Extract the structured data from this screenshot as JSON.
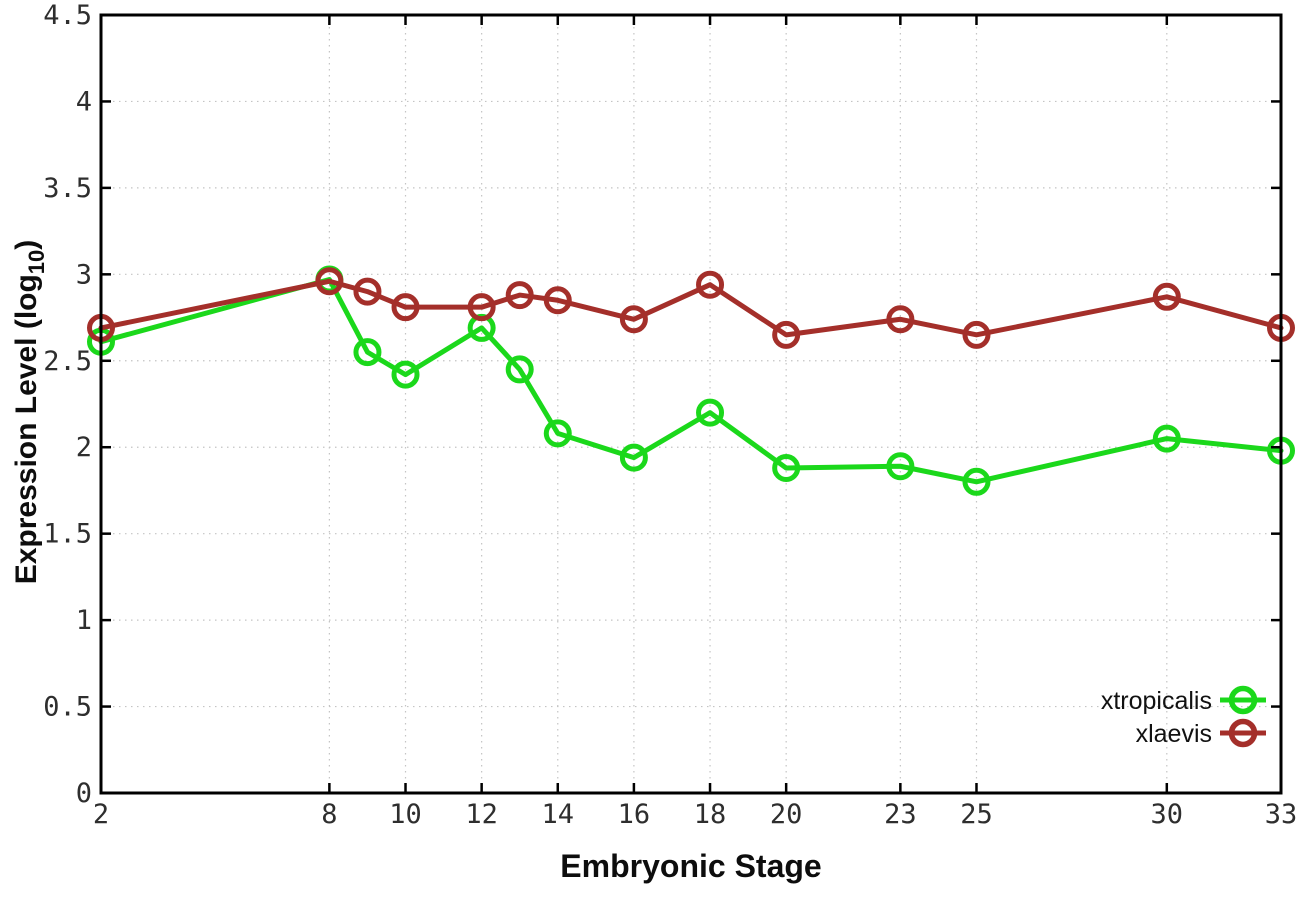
{
  "chart_data": {
    "type": "line",
    "title": "",
    "xlabel": "Embryonic Stage",
    "ylabel": "Expression Level (log10)",
    "ylabel_parts": {
      "main": "Expression Level (log",
      "sub": "10",
      "close": ")"
    },
    "x": [
      2,
      8,
      9,
      10,
      12,
      13,
      14,
      16,
      18,
      20,
      23,
      25,
      30,
      33
    ],
    "series": [
      {
        "name": "xtropicalis",
        "color": "#1bd81b",
        "values": [
          2.61,
          2.97,
          2.55,
          2.42,
          2.69,
          2.45,
          2.08,
          1.94,
          2.2,
          1.88,
          1.89,
          1.8,
          2.05,
          1.98
        ]
      },
      {
        "name": "xlaevis",
        "color": "#a42f2a",
        "values": [
          2.69,
          2.96,
          2.9,
          2.81,
          2.81,
          2.88,
          2.85,
          2.74,
          2.94,
          2.65,
          2.74,
          2.65,
          2.87,
          2.69
        ]
      }
    ],
    "xticks": [
      2,
      8,
      10,
      12,
      14,
      16,
      18,
      20,
      23,
      25,
      30,
      33
    ],
    "yticks": [
      0,
      0.5,
      1,
      1.5,
      2,
      2.5,
      3,
      3.5,
      4,
      4.5
    ],
    "xlim": [
      2,
      33
    ],
    "ylim": [
      0,
      4.5
    ],
    "grid": true,
    "legend_position": "bottom-right",
    "marker": "open-circle",
    "background_color": "#ffffff",
    "grid_color": "#c4c4c4",
    "axis_color": "#000000"
  }
}
